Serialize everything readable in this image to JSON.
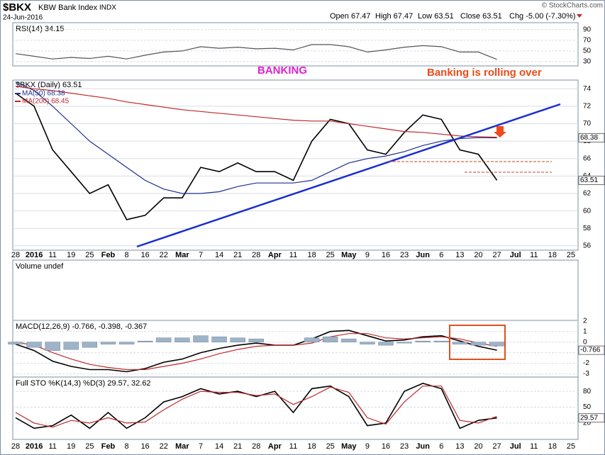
{
  "header": {
    "symbol": "$BKX",
    "name": "KBW Bank Index",
    "exchange": "INDX",
    "date": "24-Jun-2016",
    "open": "Open 67.47",
    "high": "High 67.47",
    "low": "Low 63.51",
    "close": "Close 63.51",
    "change": "Chg -5.00 (-7.30%)",
    "source": "© StockCharts.com"
  },
  "annotations": {
    "left": "BANKING",
    "right": "Banking is rolling over"
  },
  "chart_data": [
    {
      "type": "line",
      "title": "RSI(14) 34.15",
      "ylim": [
        22,
        103
      ],
      "yticks": [
        90,
        70,
        50,
        30
      ],
      "grid": true,
      "series": [
        {
          "name": "RSI(14)",
          "color": "#555555",
          "values": [
            45,
            40,
            35,
            38,
            36,
            40,
            35,
            42,
            48,
            50,
            58,
            55,
            57,
            54,
            55,
            52,
            62,
            62,
            58,
            48,
            52,
            57,
            60,
            58,
            48,
            48,
            34.15,
            null,
            null,
            null,
            null
          ]
        }
      ]
    },
    {
      "type": "line",
      "title": "$BKX (Daily) 63.51",
      "ylim": [
        55.5,
        75
      ],
      "yticks": [
        74,
        72,
        70,
        68,
        66,
        64,
        62,
        60,
        58,
        56
      ],
      "grid": true,
      "categories": [
        "28",
        "2016",
        "11",
        "19",
        "25",
        "Feb",
        "8",
        "16",
        "22",
        "Mar",
        "7",
        "14",
        "21",
        "28",
        "Apr",
        "11",
        "18",
        "25",
        "May",
        "9",
        "16",
        "23",
        "Jun",
        "6",
        "13",
        "20",
        "27",
        "Jul",
        "11",
        "18",
        "25"
      ],
      "series": [
        {
          "name": "$BKX (Daily) 63.51",
          "color": "#000000",
          "values": [
            73.5,
            72,
            67,
            64.5,
            62,
            63,
            59,
            59.5,
            61.5,
            61.5,
            65,
            64.5,
            65.5,
            64.5,
            64.5,
            63.5,
            68,
            70.5,
            70,
            67,
            66.5,
            69,
            71,
            70.5,
            67,
            66.5,
            63.51,
            null,
            null,
            null,
            null
          ]
        },
        {
          "name": "MA(50) 68.38",
          "color": "#1f2f8f",
          "values": [
            74.8,
            73.8,
            72,
            70,
            68,
            66.5,
            65,
            63.5,
            62.5,
            62,
            62,
            62.2,
            62.8,
            63.2,
            63.2,
            63.2,
            63.5,
            64.5,
            65.5,
            66,
            66.3,
            66.8,
            67.5,
            68,
            68.3,
            68.4,
            68.38,
            null,
            null,
            null,
            null
          ]
        },
        {
          "name": "MA(200) 68.45",
          "color": "#c0282c",
          "values": [
            74.3,
            74,
            73.8,
            73.5,
            73.2,
            72.9,
            72.5,
            72.2,
            71.9,
            71.6,
            71.4,
            71.2,
            71,
            70.8,
            70.6,
            70.4,
            70.3,
            70.3,
            70,
            69.7,
            69.4,
            69.1,
            69,
            68.8,
            68.6,
            68.5,
            68.45,
            null,
            null,
            null,
            null
          ]
        }
      ]
    },
    {
      "type": "bar",
      "title": "Volume undef"
    },
    {
      "type": "line",
      "title": "MACD(12,26,9) -0.766, -0.398, -0.367",
      "ylim": [
        -3.3,
        2.05
      ],
      "yticks": [
        2,
        1,
        0,
        -1,
        -2,
        -3
      ],
      "grid": true,
      "series": [
        {
          "name": "MACD",
          "color": "#000000",
          "values": [
            -0.2,
            -0.8,
            -1.8,
            -2.3,
            -2.6,
            -2.6,
            -2.8,
            -2.5,
            -1.9,
            -1.6,
            -1,
            -0.6,
            -0.3,
            -0.1,
            -0.3,
            -0.3,
            0.3,
            1,
            1.1,
            0.6,
            0.1,
            0.2,
            0.5,
            0.6,
            0.1,
            -0.4,
            -0.766,
            null,
            null,
            null,
            null
          ]
        },
        {
          "name": "Signal",
          "color": "#c0282c",
          "values": [
            0,
            -0.3,
            -1,
            -1.6,
            -2.1,
            -2.4,
            -2.6,
            -2.6,
            -2.3,
            -2,
            -1.6,
            -1.1,
            -0.7,
            -0.4,
            -0.3,
            -0.3,
            -0.1,
            0.5,
            0.8,
            0.8,
            0.4,
            0.3,
            0.4,
            0.5,
            0.3,
            -0.1,
            -0.398,
            null,
            null,
            null,
            null
          ]
        },
        {
          "name": "Histogram",
          "color": "#9fb3c8",
          "type": "bar",
          "values": [
            -0.2,
            -0.5,
            -0.8,
            -0.7,
            -0.5,
            -0.2,
            -0.2,
            0.1,
            0.4,
            0.4,
            0.6,
            0.5,
            0.4,
            0.3,
            0,
            0,
            0.4,
            0.5,
            0.3,
            -0.2,
            -0.3,
            -0.1,
            0.1,
            0.1,
            -0.2,
            -0.3,
            -0.367,
            null,
            null,
            null,
            null
          ]
        }
      ]
    },
    {
      "type": "line",
      "title": "Full STO %K(14,3) %D(3) 29.57, 32.62",
      "ylim": [
        -11,
        107
      ],
      "yticks": [
        80,
        50,
        20
      ],
      "grid": true,
      "series": [
        {
          "name": "%K",
          "color": "#000000",
          "values": [
            30,
            10,
            15,
            35,
            10,
            40,
            10,
            30,
            60,
            70,
            85,
            75,
            80,
            70,
            80,
            40,
            85,
            90,
            70,
            15,
            20,
            80,
            95,
            85,
            10,
            25,
            29.57,
            null,
            null,
            null,
            null
          ]
        },
        {
          "name": "%D",
          "color": "#c0282c",
          "values": [
            40,
            20,
            12,
            25,
            20,
            30,
            20,
            22,
            45,
            65,
            80,
            78,
            78,
            72,
            75,
            55,
            70,
            88,
            78,
            30,
            18,
            60,
            90,
            90,
            25,
            20,
            32.62,
            null,
            null,
            null,
            null
          ]
        }
      ]
    }
  ]
}
